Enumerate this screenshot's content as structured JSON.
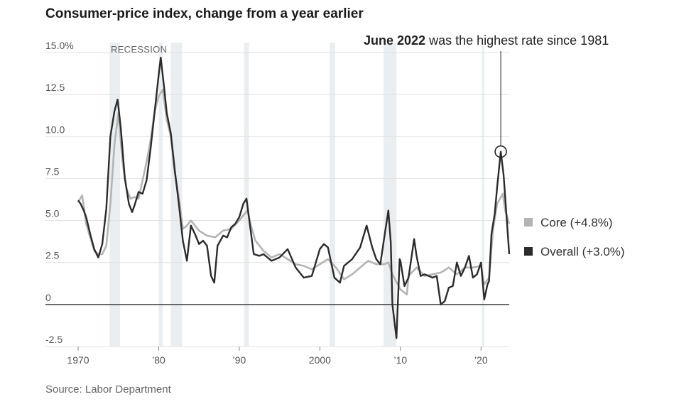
{
  "title": "Consumer-price index, change from a year earlier",
  "source": "Source: Labor Department",
  "annotation": {
    "bold": "June 2022",
    "rest": " was the highest rate since 1981"
  },
  "recession_label": "RECESSION",
  "legend": [
    {
      "label": "Core (+4.8%)",
      "color": "#b4b4b4"
    },
    {
      "label": "Overall (+3.0%)",
      "color": "#2b2b2b"
    }
  ],
  "chart_data": {
    "type": "line",
    "title": "Consumer-price index, change from a year earlier",
    "ylim": [
      -2.5,
      15
    ],
    "y_ticks": [
      {
        "value": 15,
        "label": "15.0%"
      },
      {
        "value": 12.5,
        "label": "12.5"
      },
      {
        "value": 10,
        "label": "10.0"
      },
      {
        "value": 7.5,
        "label": "7.5"
      },
      {
        "value": 5,
        "label": "5.0"
      },
      {
        "value": 2.5,
        "label": "2.5"
      },
      {
        "value": 0,
        "label": "0"
      },
      {
        "value": -2.5,
        "label": "-2.5"
      }
    ],
    "xlim": [
      1970,
      2023.5
    ],
    "x_ticks": [
      {
        "value": 1970,
        "label": "1970"
      },
      {
        "value": 1980,
        "label": "’80"
      },
      {
        "value": 1990,
        "label": "’90"
      },
      {
        "value": 2000,
        "label": "2000"
      },
      {
        "value": 2010,
        "label": "’10"
      },
      {
        "value": 2020,
        "label": "’20"
      }
    ],
    "recessions": [
      [
        1973.9,
        1975.2
      ],
      [
        1980.0,
        1980.5
      ],
      [
        1981.5,
        1982.9
      ],
      [
        1990.6,
        1991.2
      ],
      [
        2001.2,
        2001.9
      ],
      [
        2007.9,
        2009.5
      ],
      [
        2020.1,
        2020.4
      ]
    ],
    "highlight": {
      "x": 2022.45,
      "y": 9.1
    },
    "series": [
      {
        "name": "Core (+4.8%)",
        "color": "#b4b4b4",
        "x": [
          1970,
          1970.5,
          1971,
          1971.5,
          1972,
          1972.5,
          1973,
          1973.5,
          1974,
          1974.5,
          1975,
          1975.5,
          1976,
          1976.5,
          1977,
          1977.5,
          1978,
          1978.5,
          1979,
          1979.5,
          1980,
          1980.5,
          1981,
          1981.5,
          1982,
          1982.5,
          1983,
          1983.5,
          1984,
          1985,
          1986,
          1987,
          1988,
          1989,
          1990,
          1991,
          1991.5,
          1992,
          1993,
          1994,
          1995,
          1996,
          1997,
          1998,
          1999,
          2000,
          2001,
          2002,
          2003,
          2004,
          2005,
          2006,
          2007,
          2008,
          2008.5,
          2009,
          2010,
          2010.8,
          2011,
          2012,
          2013,
          2014,
          2015,
          2016,
          2017,
          2018,
          2019,
          2020,
          2020.4,
          2021,
          2021.5,
          2022,
          2022.7,
          2023,
          2023.5
        ],
        "values": [
          6.1,
          6.5,
          4.8,
          4.0,
          3.2,
          3.0,
          3.0,
          3.5,
          6.0,
          9.5,
          11.4,
          8.5,
          6.9,
          6.3,
          6.4,
          6.3,
          7.4,
          8.5,
          9.8,
          11.5,
          12.4,
          12.8,
          11.0,
          10.0,
          7.8,
          6.4,
          4.5,
          4.7,
          5.0,
          4.4,
          4.1,
          4.0,
          4.4,
          4.5,
          5.0,
          5.6,
          4.6,
          3.8,
          3.2,
          2.8,
          3.0,
          2.7,
          2.4,
          2.3,
          2.1,
          2.4,
          2.7,
          2.2,
          1.5,
          1.8,
          2.2,
          2.6,
          2.4,
          2.4,
          2.5,
          1.8,
          0.9,
          0.6,
          1.7,
          2.2,
          1.7,
          1.8,
          1.9,
          2.2,
          1.8,
          2.2,
          2.2,
          2.3,
          1.2,
          1.6,
          4.5,
          6.0,
          6.6,
          5.6,
          4.8
        ]
      },
      {
        "name": "Overall (+3.0%)",
        "color": "#2b2b2b",
        "x": [
          1970,
          1970.3,
          1970.7,
          1971,
          1971.5,
          1972,
          1972.5,
          1973,
          1973.5,
          1974,
          1974.5,
          1974.9,
          1975.3,
          1975.8,
          1976.3,
          1976.7,
          1977,
          1977.5,
          1978,
          1978.5,
          1979,
          1979.5,
          1980,
          1980.25,
          1980.7,
          1981,
          1981.5,
          1982,
          1982.5,
          1983,
          1983.5,
          1984,
          1984.5,
          1985,
          1985.5,
          1986,
          1986.5,
          1986.9,
          1987.3,
          1988,
          1988.5,
          1989,
          1989.5,
          1990,
          1990.5,
          1990.9,
          1991.3,
          1991.8,
          1992.5,
          1993,
          1994,
          1995,
          1996,
          1997,
          1998,
          1999,
          2000,
          2000.5,
          2001,
          2001.8,
          2002.5,
          2003,
          2004,
          2005,
          2005.8,
          2006.5,
          2007,
          2007.5,
          2008,
          2008.5,
          2008.8,
          2009,
          2009.5,
          2009.9,
          2010,
          2010.5,
          2011,
          2011.7,
          2012,
          2012.5,
          2013,
          2014,
          2014.5,
          2015,
          2015.5,
          2016,
          2016.5,
          2017,
          2017.5,
          2018,
          2018.5,
          2019,
          2019.5,
          2020,
          2020.4,
          2020.8,
          2021,
          2021.3,
          2021.7,
          2022,
          2022.45,
          2022.8,
          2023,
          2023.5
        ],
        "values": [
          6.2,
          6.0,
          5.6,
          5.2,
          4.2,
          3.3,
          2.8,
          3.6,
          5.7,
          10.0,
          11.5,
          12.2,
          10.5,
          7.5,
          6.0,
          5.5,
          5.9,
          6.7,
          6.6,
          7.4,
          9.3,
          11.5,
          13.7,
          14.7,
          12.8,
          11.4,
          10.2,
          8.0,
          6.0,
          3.8,
          2.6,
          4.7,
          4.2,
          3.6,
          3.8,
          3.5,
          1.7,
          1.3,
          3.5,
          4.1,
          4.0,
          4.6,
          4.8,
          5.2,
          6.0,
          6.3,
          4.8,
          3.0,
          2.9,
          3.0,
          2.6,
          2.8,
          3.3,
          2.2,
          1.6,
          1.7,
          3.3,
          3.6,
          3.4,
          1.6,
          1.3,
          2.3,
          2.7,
          3.4,
          4.7,
          3.4,
          2.7,
          2.4,
          4.0,
          5.6,
          3.7,
          0.0,
          -2.0,
          2.7,
          2.6,
          1.1,
          1.6,
          3.9,
          2.9,
          1.7,
          1.8,
          1.6,
          1.7,
          0.0,
          0.2,
          1.0,
          1.1,
          2.5,
          1.7,
          2.2,
          2.9,
          1.6,
          1.8,
          2.5,
          0.3,
          1.2,
          1.4,
          4.2,
          5.4,
          7.0,
          9.1,
          7.7,
          6.4,
          3.0
        ]
      }
    ]
  }
}
